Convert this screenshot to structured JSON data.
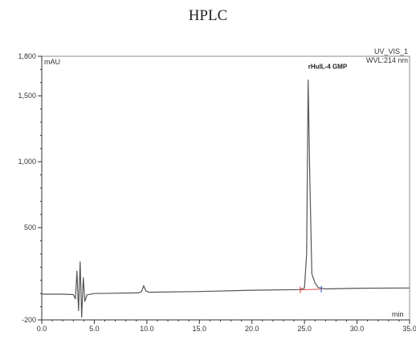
{
  "chart_data": {
    "type": "line",
    "title": "HPLC",
    "xlabel": "min",
    "ylabel": "mAU",
    "channel": "UV_VIS_1",
    "wavelength": "WVL:214 nm",
    "xlim": [
      0,
      35
    ],
    "ylim": [
      -200,
      1800
    ],
    "x_ticks": [
      0,
      5,
      10,
      15,
      20,
      25,
      30,
      35
    ],
    "x_tick_labels": [
      "0.0",
      "5.0",
      "10.0",
      "15.0",
      "20.0",
      "25.0",
      "30.0",
      "35.0"
    ],
    "y_ticks": [
      -200,
      500,
      1000,
      1500,
      1800
    ],
    "y_tick_labels": [
      "-200",
      "500",
      "1,000",
      "1,500",
      "1,800"
    ],
    "grid": false,
    "series": [
      {
        "name": "",
        "color": "#555555",
        "x": [
          0.0,
          2.0,
          3.0,
          3.2,
          3.35,
          3.5,
          3.65,
          3.8,
          3.95,
          4.1,
          4.3,
          5.0,
          9.2,
          9.5,
          9.7,
          9.9,
          10.2,
          15.0,
          20.0,
          24.5,
          25.0,
          25.2,
          25.35,
          25.5,
          25.7,
          26.0,
          26.3,
          27.0,
          30.0,
          35.0
        ],
        "y": [
          -5,
          -5,
          -8,
          -40,
          170,
          -130,
          240,
          -180,
          120,
          -60,
          -10,
          0,
          5,
          15,
          60,
          20,
          10,
          15,
          25,
          30,
          40,
          300,
          1620,
          900,
          150,
          80,
          45,
          35,
          40,
          42
        ]
      }
    ],
    "annotations": [
      {
        "text": "rHuIL-4 GMP",
        "x": 25.35,
        "y": 1620
      }
    ],
    "baseline_marks": [
      {
        "x": 24.6,
        "y": 28,
        "color": "#e05050"
      },
      {
        "x": 26.6,
        "y": 33,
        "color": "#4060d0"
      }
    ]
  }
}
